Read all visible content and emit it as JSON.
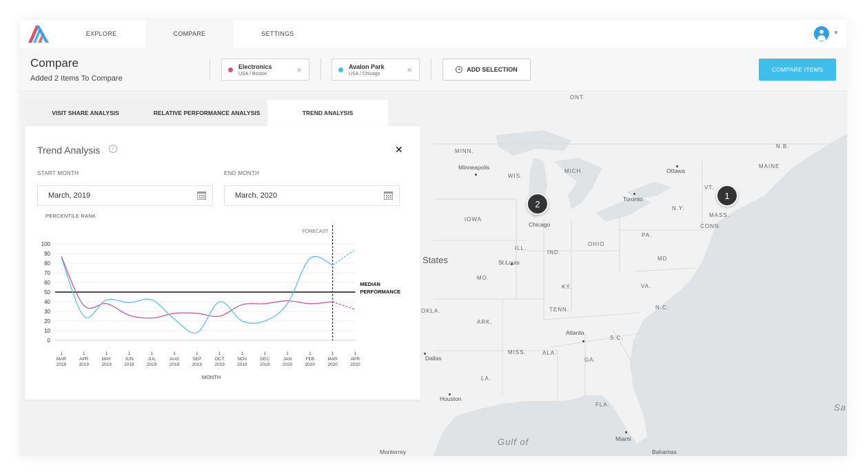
{
  "nav": {
    "tabs": [
      {
        "label": "EXPLORE",
        "active": false
      },
      {
        "label": "COMPARE",
        "active": true
      },
      {
        "label": "SETTINGS",
        "active": false
      }
    ]
  },
  "header": {
    "title": "Compare",
    "subtitle": "Added 2 Items To Compare",
    "selections": [
      {
        "name": "Electronics",
        "location": "USA / Boston",
        "color": "#d6586e"
      },
      {
        "name": "Avalon Park",
        "location": "USA / Chicago",
        "color": "#3dbfed"
      }
    ],
    "add_selection_label": "ADD SELECTION",
    "compare_button_label": "COMPARE ITEMS",
    "accent_color": "#3dbfed"
  },
  "analysis": {
    "tabs": [
      {
        "label": "VISIT SHARE ANALYSIS",
        "active": false
      },
      {
        "label": "RELATIVE PERFORMANCE ANALYSIS",
        "active": false
      },
      {
        "label": "TREND ANALYSIS",
        "active": true
      }
    ],
    "title": "Trend Analysis",
    "start_month_label": "START MONTH",
    "start_month_value": "March, 2019",
    "end_month_label": "END MONTH",
    "end_month_value": "March, 2020",
    "y_axis_label": "PERCENTILE RANK"
  },
  "chart_data": {
    "type": "line",
    "ylabel": "PERCENTILE RANK",
    "xlabel": "MONTH",
    "ylim": [
      0,
      100
    ],
    "yticks": [
      0,
      10,
      20,
      30,
      40,
      50,
      60,
      70,
      80,
      90,
      100
    ],
    "x": [
      {
        "day": "1",
        "mon": "MAR",
        "year": "2019"
      },
      {
        "day": "1",
        "mon": "APR",
        "year": "2019"
      },
      {
        "day": "1",
        "mon": "MAY",
        "year": "2019"
      },
      {
        "day": "1",
        "mon": "JUN",
        "year": "2019"
      },
      {
        "day": "1",
        "mon": "JUL",
        "year": "2019"
      },
      {
        "day": "1",
        "mon": "AUG",
        "year": "2019"
      },
      {
        "day": "1",
        "mon": "SEP",
        "year": "2019"
      },
      {
        "day": "1",
        "mon": "OCT",
        "year": "2019"
      },
      {
        "day": "1",
        "mon": "NOV",
        "year": "2019"
      },
      {
        "day": "1",
        "mon": "DEC",
        "year": "2019"
      },
      {
        "day": "1",
        "mon": "JAN",
        "year": "2020"
      },
      {
        "day": "1",
        "mon": "FEB",
        "year": "2020"
      },
      {
        "day": "1",
        "mon": "MAR",
        "year": "2020"
      },
      {
        "day": "1",
        "mon": "APR",
        "year": "2020"
      }
    ],
    "median": {
      "value": 50,
      "label": "MEDIAN PERFORMANCE"
    },
    "forecast": {
      "label": "FORECAST",
      "starts_at_index": 12
    },
    "series": [
      {
        "color": "#c35aa4",
        "values": [
          87,
          36,
          38,
          26,
          23,
          28,
          28,
          25,
          37,
          38,
          41,
          38,
          40,
          32
        ]
      },
      {
        "color": "#5cc0e8",
        "values": [
          86,
          25,
          42,
          39,
          42,
          22,
          8,
          40,
          20,
          20,
          38,
          85,
          78,
          94
        ]
      }
    ],
    "grid": true
  },
  "map": {
    "labels": [
      {
        "text": "ONT."
      },
      {
        "text": "MINN."
      },
      {
        "text": "MICH."
      },
      {
        "text": "WIS."
      },
      {
        "text": "N.B."
      },
      {
        "text": "MAINE"
      },
      {
        "text": "VT."
      },
      {
        "text": "N.Y."
      },
      {
        "text": "MASS."
      },
      {
        "text": "CONN."
      },
      {
        "text": "IOWA"
      },
      {
        "text": "ILL."
      },
      {
        "text": "IND."
      },
      {
        "text": "OHIO"
      },
      {
        "text": "PA."
      },
      {
        "text": "MD"
      },
      {
        "text": "MO."
      },
      {
        "text": "KY."
      },
      {
        "text": "VA."
      },
      {
        "text": "TENN."
      },
      {
        "text": "N.C."
      },
      {
        "text": "ARK."
      },
      {
        "text": "S.C."
      },
      {
        "text": "MISS."
      },
      {
        "text": "ALA."
      },
      {
        "text": "GA."
      },
      {
        "text": "LA."
      },
      {
        "text": "FLA."
      },
      {
        "text": "OKLA."
      }
    ],
    "cities": [
      {
        "text": "Minneapolis"
      },
      {
        "text": "Ottawa"
      },
      {
        "text": "Toronto"
      },
      {
        "text": "Chicago"
      },
      {
        "text": "St.Louis"
      },
      {
        "text": "Atlanta"
      },
      {
        "text": "Dallas"
      },
      {
        "text": "Houston"
      },
      {
        "text": "Miami"
      },
      {
        "text": "Monterrey"
      },
      {
        "text": "Bahamas"
      }
    ],
    "big_labels": {
      "states": "States",
      "gulf": "Gulf of",
      "sea": "Sa"
    },
    "markers": [
      {
        "label": "1"
      },
      {
        "label": "2"
      }
    ]
  }
}
